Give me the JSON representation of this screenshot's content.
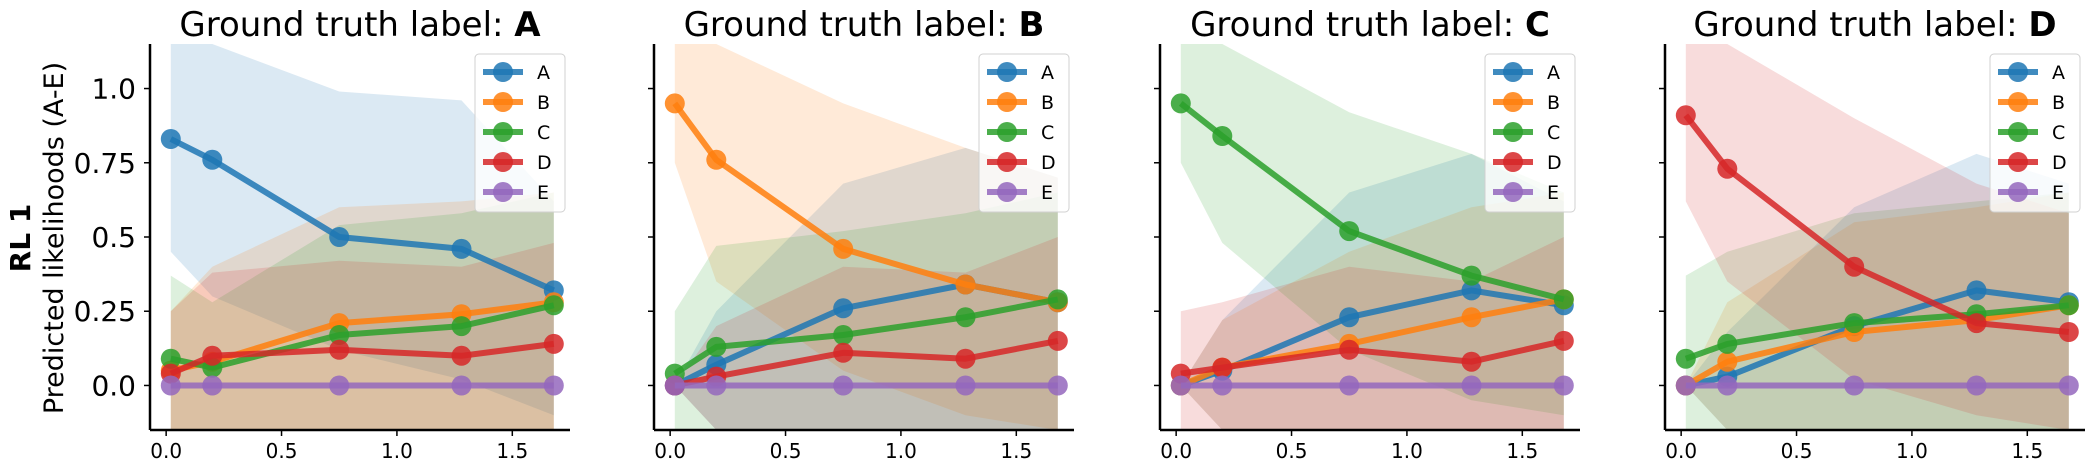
{
  "figure": {
    "row_label": "RL 1",
    "ylabel": "Predicted likelihoods (A-E)",
    "title_prefix": "Ground truth label: ",
    "legend_labels": [
      "A",
      "B",
      "C",
      "D",
      "E"
    ],
    "colors": {
      "A": "#1f77b4",
      "B": "#ff7f0e",
      "C": "#2ca02c",
      "D": "#d62728",
      "E": "#9467bd"
    }
  },
  "chart_data": [
    {
      "type": "line",
      "title": "Ground truth label: A",
      "title_bold": "A",
      "xlabel": "",
      "ylabel": "Predicted likelihoods (A-E)",
      "x": [
        0.02,
        0.2,
        0.75,
        1.28,
        1.68
      ],
      "xlim": [
        -0.07,
        1.75
      ],
      "ylim": [
        -0.15,
        1.15
      ],
      "xticks": [
        "0.0",
        "0.5",
        "1.0",
        "1.5"
      ],
      "yticks": [
        "0.0",
        "0.25",
        "0.5",
        "0.75",
        "1.0"
      ],
      "legend_position": "top-right",
      "series": [
        {
          "name": "A",
          "values": [
            0.83,
            0.76,
            0.5,
            0.46,
            0.32
          ],
          "band_lo": [
            0.45,
            0.3,
            0.12,
            0.02,
            -0.1
          ],
          "band_hi": [
            1.15,
            1.15,
            0.99,
            0.96,
            0.62
          ]
        },
        {
          "name": "B",
          "values": [
            0.05,
            0.08,
            0.21,
            0.24,
            0.28
          ],
          "band_lo": [
            -0.15,
            -0.15,
            -0.15,
            -0.15,
            -0.15
          ],
          "band_hi": [
            0.25,
            0.4,
            0.6,
            0.62,
            0.65
          ]
        },
        {
          "name": "C",
          "values": [
            0.09,
            0.06,
            0.17,
            0.2,
            0.27
          ],
          "band_lo": [
            -0.15,
            -0.15,
            -0.15,
            -0.15,
            -0.15
          ],
          "band_hi": [
            0.37,
            0.28,
            0.54,
            0.58,
            0.65
          ]
        },
        {
          "name": "D",
          "values": [
            0.04,
            0.1,
            0.12,
            0.1,
            0.14
          ],
          "band_lo": [
            -0.15,
            -0.15,
            -0.15,
            -0.15,
            -0.15
          ],
          "band_hi": [
            0.25,
            0.38,
            0.42,
            0.4,
            0.48
          ]
        },
        {
          "name": "E",
          "values": [
            0.0,
            0.0,
            0.0,
            0.0,
            0.0
          ],
          "band_lo": [
            0,
            0,
            0,
            0,
            0
          ],
          "band_hi": [
            0,
            0,
            0,
            0,
            0
          ]
        }
      ]
    },
    {
      "type": "line",
      "title": "Ground truth label: B",
      "title_bold": "B",
      "xlabel": "",
      "ylabel": "",
      "x": [
        0.02,
        0.2,
        0.75,
        1.28,
        1.68
      ],
      "xlim": [
        -0.07,
        1.75
      ],
      "ylim": [
        -0.15,
        1.15
      ],
      "xticks": [
        "0.0",
        "0.5",
        "1.0",
        "1.5"
      ],
      "yticks": [],
      "legend_position": "top-right",
      "series": [
        {
          "name": "A",
          "values": [
            0.0,
            0.07,
            0.26,
            0.34,
            0.28
          ],
          "band_lo": [
            0,
            -0.15,
            -0.15,
            -0.15,
            -0.15
          ],
          "band_hi": [
            0,
            0.25,
            0.68,
            0.8,
            0.7
          ]
        },
        {
          "name": "B",
          "values": [
            0.95,
            0.76,
            0.46,
            0.34,
            0.28
          ],
          "band_lo": [
            0.75,
            0.35,
            0.05,
            -0.1,
            -0.15
          ],
          "band_hi": [
            1.15,
            1.15,
            0.95,
            0.8,
            0.7
          ]
        },
        {
          "name": "C",
          "values": [
            0.04,
            0.13,
            0.17,
            0.23,
            0.29
          ],
          "band_lo": [
            -0.15,
            -0.15,
            -0.15,
            -0.15,
            -0.15
          ],
          "band_hi": [
            0.25,
            0.47,
            0.52,
            0.58,
            0.65
          ]
        },
        {
          "name": "D",
          "values": [
            0.0,
            0.03,
            0.11,
            0.09,
            0.15
          ],
          "band_lo": [
            0,
            -0.15,
            -0.15,
            -0.15,
            -0.15
          ],
          "band_hi": [
            0,
            0.2,
            0.4,
            0.38,
            0.5
          ]
        },
        {
          "name": "E",
          "values": [
            0.0,
            0.0,
            0.0,
            0.0,
            0.0
          ],
          "band_lo": [
            0,
            0,
            0,
            0,
            0
          ],
          "band_hi": [
            0,
            0,
            0,
            0,
            0
          ]
        }
      ]
    },
    {
      "type": "line",
      "title": "Ground truth label: C",
      "title_bold": "C",
      "xlabel": "",
      "ylabel": "",
      "x": [
        0.02,
        0.2,
        0.75,
        1.28,
        1.68
      ],
      "xlim": [
        -0.07,
        1.75
      ],
      "ylim": [
        -0.15,
        1.15
      ],
      "xticks": [
        "0.0",
        "0.5",
        "1.0",
        "1.5"
      ],
      "yticks": [],
      "legend_position": "top-right",
      "series": [
        {
          "name": "A",
          "values": [
            0.0,
            0.05,
            0.23,
            0.32,
            0.27
          ],
          "band_lo": [
            0,
            -0.15,
            -0.15,
            -0.15,
            -0.15
          ],
          "band_hi": [
            0,
            0.22,
            0.65,
            0.78,
            0.62
          ]
        },
        {
          "name": "B",
          "values": [
            0.0,
            0.06,
            0.14,
            0.23,
            0.29
          ],
          "band_lo": [
            0,
            -0.15,
            -0.15,
            -0.15,
            -0.15
          ],
          "band_hi": [
            0,
            0.22,
            0.45,
            0.6,
            0.65
          ]
        },
        {
          "name": "C",
          "values": [
            0.95,
            0.84,
            0.52,
            0.37,
            0.29
          ],
          "band_lo": [
            0.75,
            0.48,
            0.12,
            -0.05,
            -0.1
          ],
          "band_hi": [
            1.15,
            1.15,
            0.92,
            0.78,
            0.65
          ]
        },
        {
          "name": "D",
          "values": [
            0.04,
            0.06,
            0.12,
            0.08,
            0.15
          ],
          "band_lo": [
            -0.15,
            -0.15,
            -0.15,
            -0.15,
            -0.15
          ],
          "band_hi": [
            0.25,
            0.28,
            0.4,
            0.35,
            0.5
          ]
        },
        {
          "name": "E",
          "values": [
            0.0,
            0.0,
            0.0,
            0.0,
            0.0
          ],
          "band_lo": [
            0,
            0,
            0,
            0,
            0
          ],
          "band_hi": [
            0,
            0,
            0,
            0,
            0
          ]
        }
      ]
    },
    {
      "type": "line",
      "title": "Ground truth label: D",
      "title_bold": "D",
      "xlabel": "",
      "ylabel": "",
      "x": [
        0.02,
        0.2,
        0.75,
        1.28,
        1.68
      ],
      "xlim": [
        -0.07,
        1.75
      ],
      "ylim": [
        -0.15,
        1.15
      ],
      "xticks": [
        "0.0",
        "0.5",
        "1.0",
        "1.5"
      ],
      "yticks": [],
      "legend_position": "top-right",
      "series": [
        {
          "name": "A",
          "values": [
            0.0,
            0.03,
            0.2,
            0.32,
            0.28
          ],
          "band_lo": [
            0,
            -0.15,
            -0.15,
            -0.15,
            -0.15
          ],
          "band_hi": [
            0,
            0.18,
            0.6,
            0.78,
            0.68
          ]
        },
        {
          "name": "B",
          "values": [
            0.0,
            0.08,
            0.18,
            0.22,
            0.27
          ],
          "band_lo": [
            0,
            -0.15,
            -0.15,
            -0.15,
            -0.15
          ],
          "band_hi": [
            0,
            0.28,
            0.55,
            0.6,
            0.65
          ]
        },
        {
          "name": "C",
          "values": [
            0.09,
            0.14,
            0.21,
            0.24,
            0.27
          ],
          "band_lo": [
            -0.15,
            -0.15,
            -0.15,
            -0.15,
            -0.15
          ],
          "band_hi": [
            0.37,
            0.45,
            0.58,
            0.62,
            0.65
          ]
        },
        {
          "name": "D",
          "values": [
            0.91,
            0.73,
            0.4,
            0.21,
            0.18
          ],
          "band_lo": [
            0.62,
            0.35,
            0.02,
            -0.1,
            -0.15
          ],
          "band_hi": [
            1.15,
            1.15,
            0.9,
            0.68,
            0.58
          ]
        },
        {
          "name": "E",
          "values": [
            0.0,
            0.0,
            0.0,
            0.0,
            0.0
          ],
          "band_lo": [
            0,
            0,
            0,
            0,
            0
          ],
          "band_hi": [
            0,
            0,
            0,
            0,
            0
          ]
        }
      ]
    }
  ]
}
